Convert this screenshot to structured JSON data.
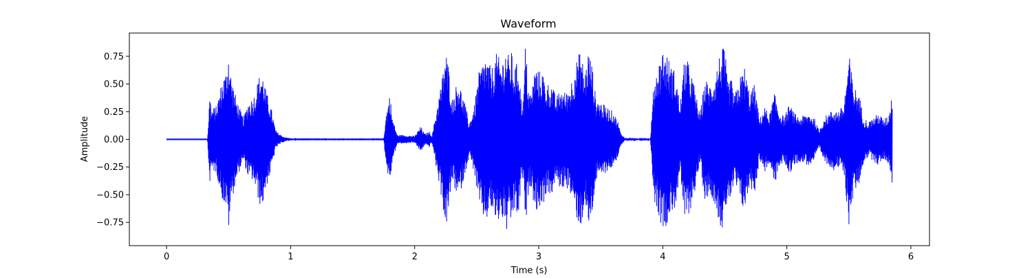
{
  "chart_data": {
    "type": "line",
    "title": "Waveform",
    "xlabel": "Time (s)",
    "ylabel": "Amplitude",
    "xlim": [
      -0.3,
      6.15
    ],
    "ylim": [
      -0.96,
      0.96
    ],
    "x_ticks": [
      0,
      1,
      2,
      3,
      4,
      5,
      6
    ],
    "x_tick_labels": [
      "0",
      "1",
      "2",
      "3",
      "4",
      "5",
      "6"
    ],
    "y_ticks": [
      -0.75,
      -0.5,
      -0.25,
      0.0,
      0.25,
      0.5,
      0.75
    ],
    "y_tick_labels": [
      "−0.75",
      "−0.50",
      "−0.25",
      "0.00",
      "0.25",
      "0.50",
      "0.75"
    ],
    "grid": false,
    "series": [
      {
        "color": "#0000ff",
        "duration_s": 5.85,
        "envelope_note": "max absolute amplitude per time point (signal oscillates symmetrically within ±envelope)",
        "envelope": {
          "t": [
            0.0,
            0.33,
            0.35,
            0.36,
            0.4,
            0.45,
            0.48,
            0.5,
            0.52,
            0.56,
            0.6,
            0.62,
            0.66,
            0.7,
            0.74,
            0.76,
            0.78,
            0.8,
            0.84,
            0.88,
            0.91,
            0.95,
            1.0,
            1.05,
            1.5,
            1.75,
            1.77,
            1.8,
            1.82,
            1.86,
            1.9,
            2.0,
            2.05,
            2.08,
            2.12,
            2.14,
            2.18,
            2.22,
            2.25,
            2.28,
            2.3,
            2.35,
            2.4,
            2.44,
            2.48,
            2.52,
            2.55,
            2.57,
            2.62,
            2.66,
            2.7,
            2.74,
            2.76,
            2.78,
            2.8,
            2.84,
            2.86,
            2.88,
            2.89,
            2.92,
            2.94,
            2.97,
            3.0,
            3.03,
            3.06,
            3.1,
            3.14,
            3.18,
            3.22,
            3.26,
            3.3,
            3.34,
            3.37,
            3.4,
            3.43,
            3.46,
            3.5,
            3.54,
            3.57,
            3.6,
            3.64,
            3.66,
            3.7,
            3.78,
            3.9,
            3.93,
            3.96,
            4.0,
            4.04,
            4.06,
            4.1,
            4.14,
            4.18,
            4.22,
            4.26,
            4.3,
            4.34,
            4.38,
            4.42,
            4.46,
            4.5,
            4.52,
            4.55,
            4.58,
            4.62,
            4.66,
            4.7,
            4.74,
            4.78,
            4.82,
            4.86,
            4.9,
            4.94,
            4.98,
            5.02,
            5.06,
            5.1,
            5.14,
            5.18,
            5.22,
            5.26,
            5.3,
            5.34,
            5.38,
            5.42,
            5.46,
            5.5,
            5.54,
            5.58,
            5.62,
            5.66,
            5.7,
            5.74,
            5.78,
            5.82,
            5.84,
            5.85
          ],
          "amp": [
            0.002,
            0.002,
            0.45,
            0.28,
            0.3,
            0.55,
            0.62,
            0.82,
            0.58,
            0.38,
            0.25,
            0.2,
            0.35,
            0.38,
            0.55,
            0.62,
            0.58,
            0.45,
            0.3,
            0.08,
            0.05,
            0.02,
            0.01,
            0.003,
            0.003,
            0.003,
            0.23,
            0.42,
            0.2,
            0.04,
            0.04,
            0.03,
            0.12,
            0.05,
            0.07,
            0.03,
            0.3,
            0.55,
            0.82,
            0.62,
            0.36,
            0.55,
            0.35,
            0.15,
            0.3,
            0.62,
            0.7,
            0.76,
            0.64,
            0.78,
            0.7,
            0.85,
            0.74,
            0.8,
            0.65,
            0.72,
            0.35,
            0.4,
            0.88,
            0.45,
            0.42,
            0.66,
            0.62,
            0.62,
            0.5,
            0.52,
            0.38,
            0.46,
            0.42,
            0.52,
            0.7,
            0.82,
            0.58,
            0.82,
            0.68,
            0.38,
            0.34,
            0.3,
            0.28,
            0.25,
            0.16,
            0.06,
            0.005,
            0.005,
            0.005,
            0.55,
            0.66,
            0.82,
            0.76,
            0.68,
            0.62,
            0.32,
            0.78,
            0.65,
            0.46,
            0.22,
            0.55,
            0.5,
            0.58,
            0.78,
            0.85,
            0.52,
            0.56,
            0.4,
            0.56,
            0.66,
            0.42,
            0.5,
            0.18,
            0.3,
            0.22,
            0.42,
            0.26,
            0.2,
            0.32,
            0.24,
            0.2,
            0.22,
            0.24,
            0.2,
            0.08,
            0.2,
            0.24,
            0.28,
            0.26,
            0.32,
            0.78,
            0.48,
            0.42,
            0.2,
            0.16,
            0.2,
            0.24,
            0.18,
            0.22,
            0.35,
            0.45
          ]
        }
      }
    ]
  }
}
